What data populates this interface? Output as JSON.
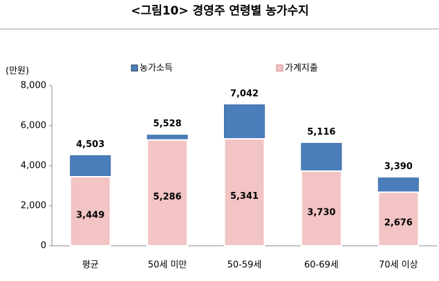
{
  "chart_data": {
    "type": "bar",
    "title": "<그림10> 경영주 연령별 농가수지",
    "y_label": "(만원)",
    "categories": [
      "평균",
      "50세 미만",
      "50-59세",
      "60-69세",
      "70세 이상"
    ],
    "series": [
      {
        "name": "농가소득",
        "color": "#4a7ebb",
        "values": [
          4503,
          5528,
          7042,
          5116,
          3390
        ],
        "value_labels": [
          "4,503",
          "5,528",
          "7,042",
          "5,116",
          "3,390"
        ]
      },
      {
        "name": "가계지출",
        "color": "#f2c4c4",
        "values": [
          3449,
          5286,
          5341,
          3730,
          2676
        ],
        "value_labels": [
          "3,449",
          "5,286",
          "5,341",
          "3,730",
          "2,676"
        ]
      }
    ],
    "ylim": [
      0,
      8000
    ],
    "yticks": [
      0,
      {
        "value": 2000,
        "label": "2,000"
      },
      {
        "value": 4000,
        "label": "4,000"
      },
      {
        "value": 6000,
        "label": "6,000"
      },
      {
        "value": 8000,
        "label": "8,000"
      }
    ],
    "legend": "top"
  }
}
